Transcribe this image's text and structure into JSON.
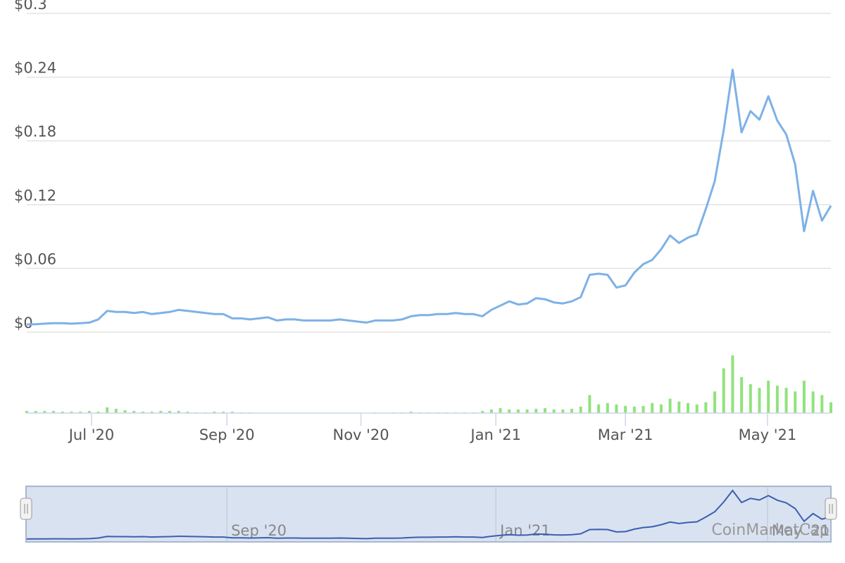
{
  "chart_data": {
    "type": "line",
    "series": [
      {
        "color": "#7eb1e6",
        "values": [
          0.0073,
          0.0075,
          0.008,
          0.0085,
          0.0085,
          0.008,
          0.0085,
          0.009,
          0.012,
          0.02,
          0.019,
          0.019,
          0.018,
          0.019,
          0.017,
          0.018,
          0.019,
          0.021,
          0.02,
          0.019,
          0.018,
          0.017,
          0.017,
          0.013,
          0.013,
          0.012,
          0.013,
          0.014,
          0.011,
          0.012,
          0.012,
          0.011,
          0.011,
          0.011,
          0.011,
          0.012,
          0.011,
          0.01,
          0.009,
          0.011,
          0.011,
          0.011,
          0.012,
          0.015,
          0.016,
          0.016,
          0.017,
          0.017,
          0.018,
          0.017,
          0.017,
          0.015,
          0.021,
          0.025,
          0.029,
          0.026,
          0.027,
          0.032,
          0.031,
          0.028,
          0.027,
          0.029,
          0.033,
          0.054,
          0.055,
          0.054,
          0.042,
          0.044,
          0.056,
          0.064,
          0.068,
          0.078,
          0.091,
          0.084,
          0.089,
          0.092,
          0.116,
          0.142,
          0.19,
          0.247,
          0.188,
          0.208,
          0.2,
          0.222,
          0.199,
          0.186,
          0.158,
          0.095,
          0.133,
          0.105,
          0.119
        ]
      }
    ],
    "volume": {
      "color": "#90e37c",
      "values": [
        3,
        3,
        3,
        3,
        2,
        2,
        2,
        3,
        2,
        8,
        6,
        4,
        3,
        2,
        2,
        3,
        3,
        3,
        2,
        1,
        1,
        2,
        2,
        2,
        1,
        1,
        0,
        0,
        0,
        0,
        0,
        0,
        0,
        0,
        0,
        0,
        0,
        0,
        0,
        1,
        0,
        1,
        1,
        2,
        1,
        1,
        1,
        1,
        1,
        1,
        1,
        3,
        5,
        7,
        5,
        5,
        5,
        6,
        7,
        5,
        5,
        6,
        9,
        25,
        12,
        14,
        12,
        10,
        9,
        10,
        14,
        12,
        20,
        16,
        14,
        12,
        15,
        30,
        62,
        80,
        50,
        40,
        35,
        45,
        38,
        35,
        30,
        45,
        30,
        25,
        15
      ]
    },
    "xlim": [
      0,
      90
    ],
    "xticks": [
      {
        "value": 7.25,
        "label": "Jul '20"
      },
      {
        "value": 22.4,
        "label": "Sep '20"
      },
      {
        "value": 37.4,
        "label": "Nov '20"
      },
      {
        "value": 52.5,
        "label": "Jan '21"
      },
      {
        "value": 67,
        "label": "Mar '21"
      },
      {
        "value": 82.9,
        "label": "May '21"
      }
    ],
    "ylim": [
      0,
      0.3
    ],
    "yticks": [
      {
        "value": 0,
        "label": "$0"
      },
      {
        "value": 0.06,
        "label": "$0.06"
      },
      {
        "value": 0.12,
        "label": "$0.12"
      },
      {
        "value": 0.18,
        "label": "$0.18"
      },
      {
        "value": 0.24,
        "label": "$0.24"
      },
      {
        "value": 0.3,
        "label": "$0.3"
      }
    ],
    "grid": true,
    "navigator": {
      "color": "#3a5fb0",
      "fill": "#d9e2f1",
      "xticks": [
        {
          "value": 22.4,
          "label": "Sep '20"
        },
        {
          "value": 52.5,
          "label": "Jan '21"
        },
        {
          "value": 82.9,
          "label": "May '21"
        }
      ]
    },
    "watermark": "CoinMarketCap"
  }
}
